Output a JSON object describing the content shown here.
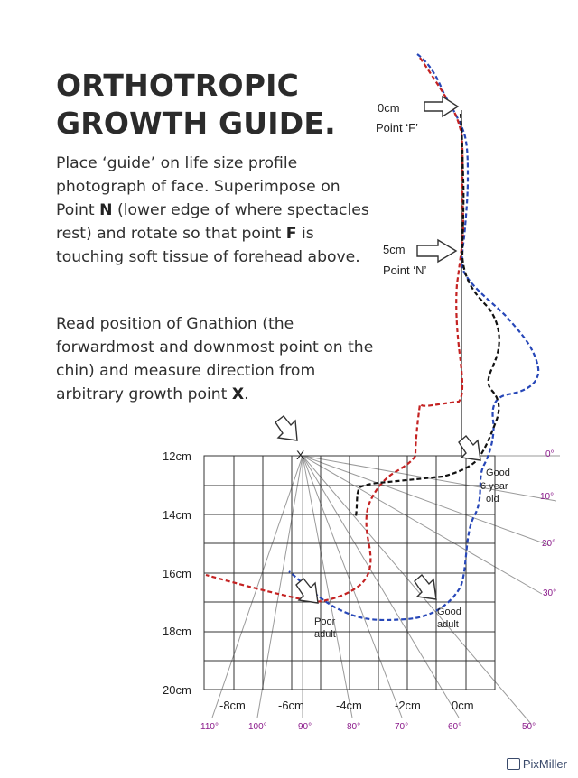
{
  "title": {
    "line1": "ORTHOTROPIC",
    "line2": "GROWTH GUIDE."
  },
  "instructions": {
    "p1": {
      "part1": "Place ‘guide’ on life size profile photograph of face. Superimpose on Point ",
      "bold1": "N",
      "part2": " (lower edge of where spectacles rest) and rotate so that point ",
      "bold2": "F",
      "part3": " is touching soft tissue of forehead above."
    },
    "p2": {
      "part1": "Read position of Gnathion (the forwardmost and downmost point on the chin) and measure direction from arbitrary growth point ",
      "bold1": "X",
      "part2": "."
    }
  },
  "points": {
    "f_distance": "0cm",
    "f_label": "Point ‘F’",
    "n_distance": "5cm",
    "n_label": "Point ‘N’",
    "x_label": "X"
  },
  "grid": {
    "y_labels": [
      "12cm",
      "14cm",
      "16cm",
      "18cm",
      "20cm"
    ],
    "x_labels": [
      "-8cm",
      "-6cm",
      "-4cm",
      "-2cm",
      "0cm"
    ]
  },
  "angles": {
    "right": [
      "0°",
      "10°",
      "20°",
      "30°"
    ],
    "bottom": [
      "110°",
      "100°",
      "90°",
      "80°",
      "70°",
      "60°",
      "50°"
    ]
  },
  "annotations": {
    "good_6yr": [
      "Good",
      "6 year",
      "old"
    ],
    "poor_adult": [
      "Poor",
      "adult"
    ],
    "good_adult": [
      "Good",
      "adult"
    ]
  },
  "colors": {
    "text": "#2b2b2b",
    "angle_label": "#8b1a8b",
    "profile_red": "#c42222",
    "profile_blue": "#2747b8",
    "profile_black": "#111111",
    "grid": "#333333"
  },
  "watermark": "PixMiller"
}
